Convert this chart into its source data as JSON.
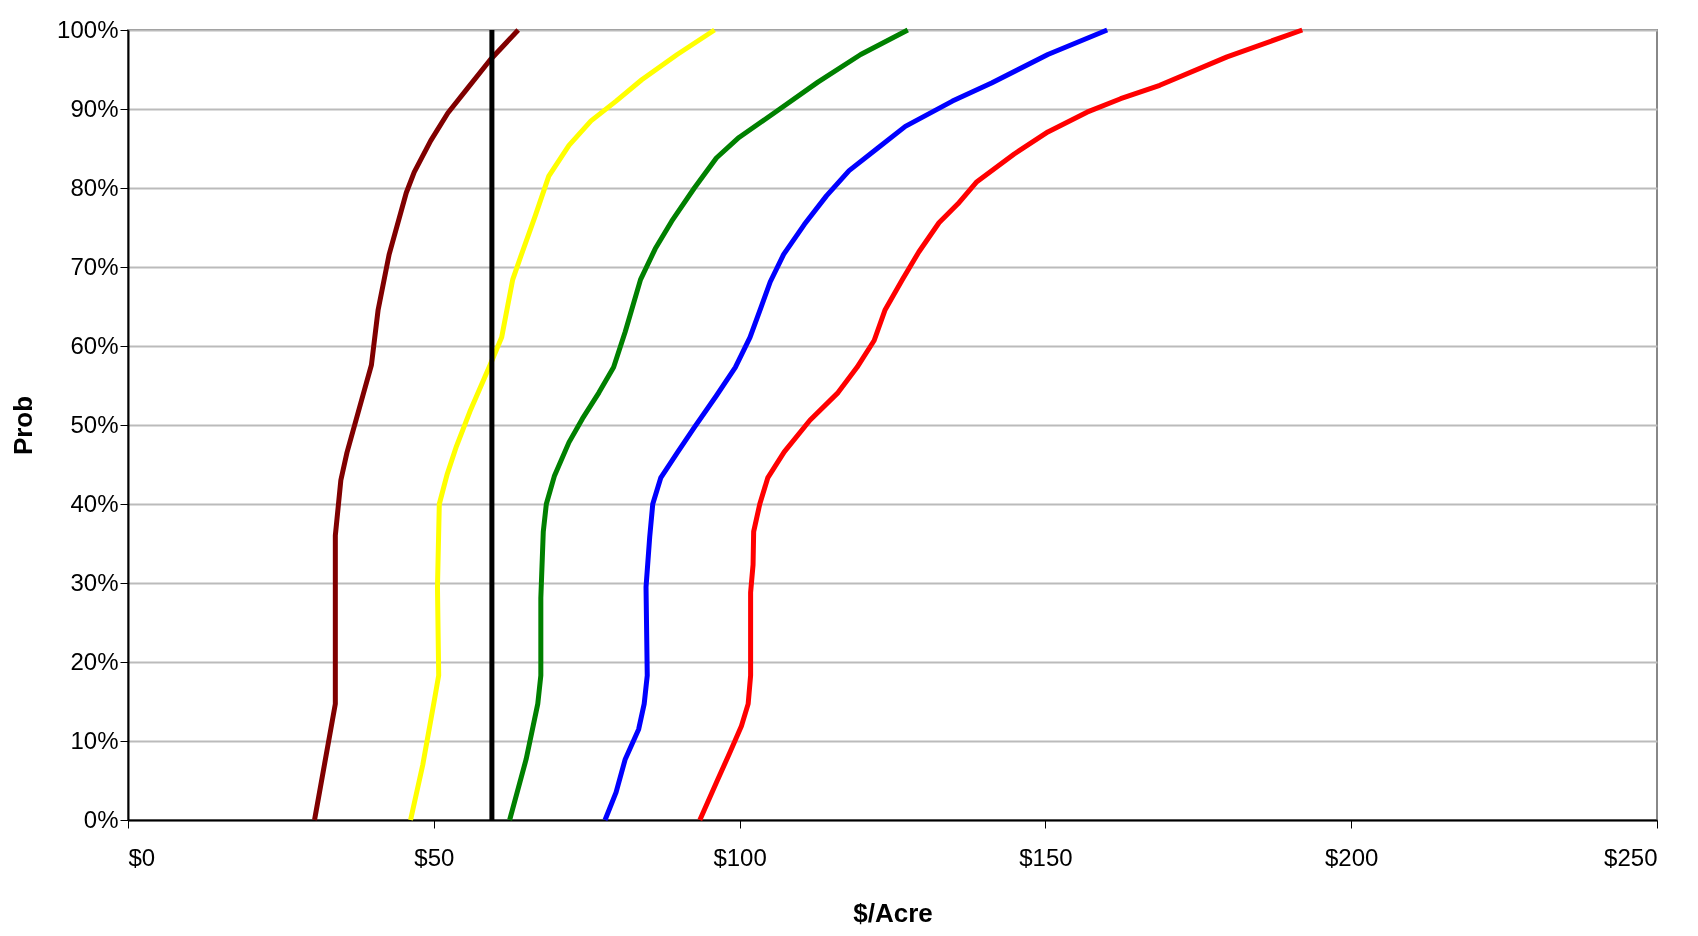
{
  "chart_data": {
    "type": "line",
    "xlabel": "$/Acre",
    "ylabel": "Prob",
    "xlim": [
      0,
      250
    ],
    "ylim": [
      0,
      100
    ],
    "xticks": [
      {
        "value": 0,
        "label": "$0"
      },
      {
        "value": 50,
        "label": "$50"
      },
      {
        "value": 100,
        "label": "$100"
      },
      {
        "value": 150,
        "label": "$150"
      },
      {
        "value": 200,
        "label": "$200"
      },
      {
        "value": 250,
        "label": "$250"
      }
    ],
    "yticks": [
      {
        "value": 0,
        "label": "0%"
      },
      {
        "value": 10,
        "label": "10%"
      },
      {
        "value": 20,
        "label": "20%"
      },
      {
        "value": 30,
        "label": "30%"
      },
      {
        "value": 40,
        "label": "40%"
      },
      {
        "value": 50,
        "label": "50%"
      },
      {
        "value": 60,
        "label": "60%"
      },
      {
        "value": 70,
        "label": "70%"
      },
      {
        "value": 80,
        "label": "80%"
      },
      {
        "value": 90,
        "label": "90%"
      },
      {
        "value": 100,
        "label": "100%"
      }
    ],
    "grid": "y",
    "marker": "none",
    "line_style": "solid",
    "series": [
      {
        "color": "#800000",
        "x": [
          30.5,
          33.9,
          33.9,
          34.8,
          35.8,
          38.5,
          39.8,
          40.9,
          42.7,
          45.5,
          46.8,
          49.5,
          52.3,
          55.6,
          59.2,
          63.8
        ],
        "values": [
          0,
          14.7,
          36,
          43,
          46.5,
          54,
          57.6,
          64.6,
          71.6,
          79.4,
          82,
          86,
          89.5,
          92.7,
          96.2,
          100
        ]
      },
      {
        "color": "#ffff00",
        "x": [
          46.2,
          48.2,
          50.1,
          50.8,
          50.6,
          50.9,
          52.2,
          53.7,
          55.9,
          59.2,
          61.1,
          62.9,
          64.2,
          66.6,
          68.8,
          72.1,
          75.7,
          79.8,
          84.0,
          89.8,
          95.9
        ],
        "values": [
          0,
          7,
          15.2,
          18.3,
          29.5,
          40,
          43.8,
          47.3,
          51.7,
          57.6,
          61.1,
          68.4,
          71.3,
          76.5,
          81.5,
          85.4,
          88.5,
          91,
          93.7,
          96.9,
          100
        ]
      },
      {
        "color": "#008000",
        "x": [
          62.4,
          65.1,
          67.0,
          67.5,
          67.5,
          67.9,
          68.4,
          69.7,
          72.1,
          74.3,
          77.0,
          79.4,
          81.3,
          83.8,
          86.2,
          88.9,
          92.6,
          96.2,
          99.9,
          106.4,
          112.8,
          119.8,
          127.5
        ],
        "values": [
          0,
          7.7,
          14.7,
          18.3,
          28.1,
          36.5,
          40,
          43.5,
          47.8,
          50.8,
          54.1,
          57.3,
          61.8,
          68.4,
          72.3,
          75.8,
          80,
          83.8,
          86.4,
          89.9,
          93.4,
          96.9,
          100
        ]
      },
      {
        "color": "#0000ff",
        "x": [
          78.0,
          79.8,
          81.3,
          83.5,
          84.4,
          84.9,
          84.7,
          85.3,
          85.8,
          87.1,
          89.9,
          92.6,
          96.2,
          99.3,
          101.7,
          103.5,
          105.0,
          107.2,
          110.6,
          114.2,
          117.9,
          122.5,
          127.1,
          134.8,
          141.2,
          150.4,
          160.1
        ],
        "values": [
          0,
          3.5,
          7.7,
          11.5,
          14.7,
          18.3,
          29.5,
          35.8,
          40,
          43.3,
          46.6,
          49.7,
          53.7,
          57.3,
          61.1,
          64.9,
          68.1,
          71.6,
          75.4,
          79,
          82.2,
          85,
          87.8,
          91,
          93.3,
          96.9,
          100
        ]
      },
      {
        "color": "#ff0000",
        "x": [
          93.5,
          96.3,
          98.5,
          100.3,
          101.4,
          101.8,
          101.8,
          102.2,
          102.3,
          103.3,
          104.6,
          107.3,
          111.5,
          116.1,
          119.2,
          122.0,
          123.8,
          126.6,
          129.3,
          132.6,
          135.7,
          138.8,
          144.9,
          150.4,
          156.8,
          162.3,
          168.7,
          179.7,
          192.0
        ],
        "values": [
          0,
          4.9,
          8.7,
          11.9,
          14.7,
          18.3,
          28.8,
          32.3,
          36.5,
          40,
          43.3,
          46.6,
          50.6,
          54.1,
          57.3,
          60.7,
          64.6,
          68.4,
          71.9,
          75.6,
          78,
          80.8,
          84.3,
          87.1,
          89.6,
          91.3,
          93,
          96.6,
          100
        ]
      }
    ],
    "ref_lines": [
      {
        "axis": "x",
        "value": 59.5,
        "color": "#000000",
        "line_style": "solid"
      }
    ]
  }
}
